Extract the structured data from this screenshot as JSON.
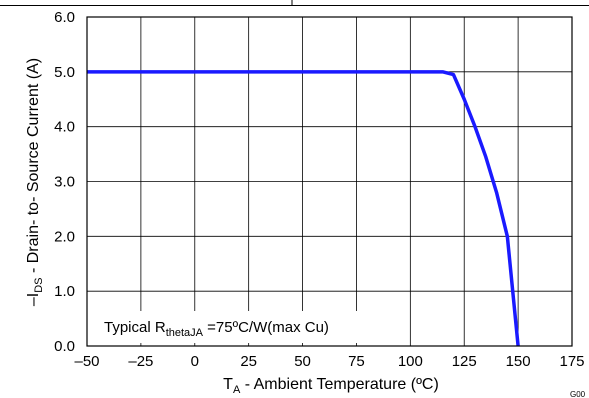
{
  "chart_data": {
    "type": "line",
    "xlabel_main": "T",
    "xlabel_sub": "A",
    "xlabel_rest": " - Ambient Temperature (ºC)",
    "ylabel_main": "–I",
    "ylabel_sub": "DS",
    "ylabel_rest": " - Drain- to- Source Current (A)",
    "xlim": [
      -50,
      175
    ],
    "ylim": [
      0,
      6
    ],
    "x_ticks": [
      "–50",
      "–25",
      "0",
      "25",
      "50",
      "75",
      "100",
      "125",
      "150",
      "175"
    ],
    "x_tick_values": [
      -50,
      -25,
      0,
      25,
      50,
      75,
      100,
      125,
      150,
      175
    ],
    "y_ticks": [
      "0.0",
      "1.0",
      "2.0",
      "3.0",
      "4.0",
      "5.0",
      "6.0"
    ],
    "y_tick_values": [
      0,
      1,
      2,
      3,
      4,
      5,
      6
    ],
    "grid": true,
    "line_color": "#1a1aff",
    "series": [
      {
        "x": [
          -50,
          115,
          120,
          125,
          130,
          135,
          140,
          145,
          150
        ],
        "y": [
          5.0,
          5.0,
          4.95,
          4.5,
          4.0,
          3.45,
          2.8,
          2.0,
          0.0
        ]
      }
    ],
    "annotation": {
      "prefix": "Typical R",
      "sub": "thetaJA",
      "suffix": " =75ºC/W(max Cu)"
    },
    "figure_id": "G00"
  }
}
